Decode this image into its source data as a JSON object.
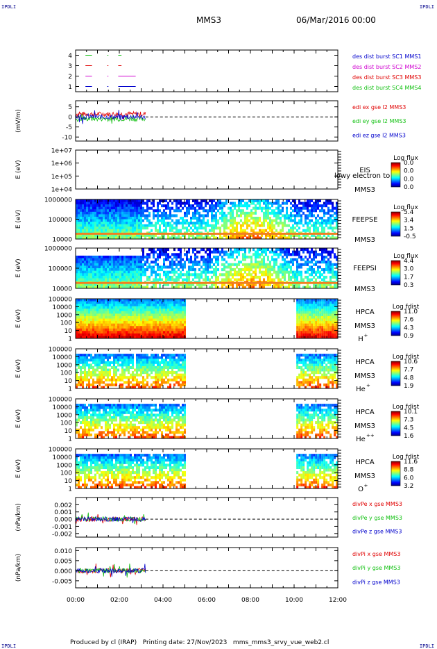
{
  "corner_labels": {
    "top_left": "IPDLI",
    "top_right": "IPDLI",
    "bottom_left": "IPDLI",
    "bottom_right": "IPDLI"
  },
  "header": {
    "spacecraft": "MMS3",
    "date": "06/Mar/2016 00:00"
  },
  "footer": {
    "text": "Produced by cl (IRAP)   Printing date: 27/Nov/2023   mms_mms3_srvy_vue_web2.cl"
  },
  "time_axis": {
    "ticks": [
      "00:00",
      "02:00",
      "04:00",
      "06:00",
      "08:00",
      "10:00",
      "12:00"
    ],
    "range_hours": [
      0,
      12
    ]
  },
  "colors": {
    "red": "#e00000",
    "green": "#10c010",
    "blue": "#0000cc",
    "magenta": "#d000d0"
  },
  "chart_data": [
    {
      "type": "line",
      "id": "des-dist",
      "yticks": [
        "1",
        "2",
        "3",
        "4"
      ],
      "ylim": [
        0.5,
        4.5
      ],
      "legend": [
        {
          "text": "des dist burst SC1 MMS1",
          "color": "#0000cc"
        },
        {
          "text": "des dist burst SC2 MMS2",
          "color": "#d000d0"
        },
        {
          "text": "des dist burst SC3 MMS3",
          "color": "#e00000"
        },
        {
          "text": "des dist burst SC4 MMS4",
          "color": "#10c010"
        }
      ],
      "series": [
        {
          "level": 4,
          "color": "#10c010",
          "segments": [
            [
              0.45,
              0.75
            ],
            [
              1.45,
              1.5
            ],
            [
              1.95,
              2.1
            ]
          ]
        },
        {
          "level": 3,
          "color": "#e00000",
          "segments": [
            [
              0.45,
              0.75
            ],
            [
              1.45,
              1.5
            ],
            [
              1.95,
              2.1
            ]
          ]
        },
        {
          "level": 2,
          "color": "#d000d0",
          "segments": [
            [
              0.45,
              0.75
            ],
            [
              1.45,
              1.5
            ],
            [
              1.95,
              2.75
            ]
          ]
        },
        {
          "level": 1,
          "color": "#0000cc",
          "segments": [
            [
              0.45,
              0.75
            ],
            [
              1.45,
              1.5
            ],
            [
              1.95,
              2.75
            ]
          ]
        }
      ]
    },
    {
      "type": "line",
      "id": "edi",
      "ylabel": "(mV/m)",
      "yticks": [
        "5",
        "0",
        "-5",
        "-10"
      ],
      "ytick_values": [
        5,
        0,
        -5,
        -10
      ],
      "ylim": [
        -12,
        8
      ],
      "legend": [
        {
          "text": "edi ex gse l2 MMS3",
          "color": "#e00000"
        },
        {
          "text": "edi ey gse l2 MMS3",
          "color": "#10c010"
        },
        {
          "text": "edi ez gse l2 MMS3",
          "color": "#0000cc"
        }
      ],
      "data_end_hours": 3.2
    },
    {
      "type": "heatmap",
      "id": "eis",
      "ylabel": "E (eV)",
      "yticks": [
        "1e+07",
        "1e+06",
        "1e+05",
        "1e+04"
      ],
      "labels": [
        "EIS",
        "MMS3"
      ],
      "overlay_text": "lowy electron to",
      "cbar_title": "Log flux",
      "cbar_ticks": [
        "0.0",
        "0.0",
        "0.0",
        "0.0"
      ],
      "data_segments": []
    },
    {
      "type": "heatmap",
      "id": "feepse",
      "ylabel": "E (eV)",
      "yticks": [
        "1000000",
        "100000",
        "10000"
      ],
      "labels": [
        "FEEPSE",
        "MMS3"
      ],
      "cbar_title": "Log flux",
      "cbar_ticks": [
        "5.4",
        "3.4",
        "1.5",
        "-0.5"
      ],
      "data_segments": [
        [
          0,
          12
        ]
      ]
    },
    {
      "type": "heatmap",
      "id": "feepsi",
      "ylabel": "E (eV)",
      "yticks": [
        "1000000",
        "100000",
        "10000"
      ],
      "labels": [
        "FEEPSI",
        "MMS3"
      ],
      "cbar_title": "Log flux",
      "cbar_ticks": [
        "4.4",
        "3.0",
        "1.7",
        "0.3"
      ],
      "data_segments": [
        [
          0,
          12
        ]
      ]
    },
    {
      "type": "heatmap",
      "id": "hpca-h",
      "ylabel": "E (eV)",
      "yticks": [
        "100000",
        "10000",
        "1000",
        "100",
        "10",
        "1"
      ],
      "labels": [
        "HPCA",
        "MMS3"
      ],
      "species": "H",
      "species_sup": "+",
      "cbar_title": "Log fdist",
      "cbar_ticks": [
        "11.0",
        "7.6",
        "4.3",
        "0.9"
      ],
      "data_segments": [
        [
          0,
          5.05
        ],
        [
          10.1,
          12
        ]
      ]
    },
    {
      "type": "heatmap",
      "id": "hpca-he",
      "ylabel": "E (eV)",
      "yticks": [
        "100000",
        "10000",
        "1000",
        "100",
        "10",
        "1"
      ],
      "labels": [
        "HPCA",
        "MMS3"
      ],
      "species": "He",
      "species_sup": "+",
      "cbar_title": "Log fdist",
      "cbar_ticks": [
        "10.6",
        "7.7",
        "4.8",
        "1.9"
      ],
      "data_segments": [
        [
          0,
          5.05
        ],
        [
          10.1,
          12
        ]
      ]
    },
    {
      "type": "heatmap",
      "id": "hpca-hepp",
      "ylabel": "E (eV)",
      "yticks": [
        "100000",
        "10000",
        "1000",
        "100",
        "10",
        "1"
      ],
      "labels": [
        "HPCA",
        "MMS3"
      ],
      "species": "He",
      "species_sup": "++",
      "cbar_title": "Log fdist",
      "cbar_ticks": [
        "10.1",
        "7.3",
        "4.5",
        "1.6"
      ],
      "data_segments": [
        [
          0,
          5.05
        ],
        [
          10.1,
          12
        ]
      ]
    },
    {
      "type": "heatmap",
      "id": "hpca-o",
      "ylabel": "E (eV)",
      "yticks": [
        "100000",
        "10000",
        "1000",
        "100",
        "10",
        "1"
      ],
      "labels": [
        "HPCA",
        "MMS3"
      ],
      "species": "O",
      "species_sup": "+",
      "cbar_title": "Log fdist",
      "cbar_ticks": [
        "11.6",
        "8.8",
        "6.0",
        "3.2"
      ],
      "data_segments": [
        [
          0,
          5.05
        ],
        [
          10.1,
          12
        ]
      ]
    },
    {
      "type": "line",
      "id": "divpe",
      "ylabel": "(nPa/km)",
      "yticks": [
        "0.002",
        "0.001",
        "0.000",
        "-0.001",
        "-0.002"
      ],
      "ytick_values": [
        0.002,
        0.001,
        0,
        -0.001,
        -0.002
      ],
      "ylim": [
        -0.0025,
        0.003
      ],
      "legend": [
        {
          "text": "divPe x gse MMS3",
          "color": "#e00000"
        },
        {
          "text": "divPe y gse MMS3",
          "color": "#10c010"
        },
        {
          "text": "divPe z gse MMS3",
          "color": "#0000cc"
        }
      ],
      "data_end_hours": 3.2
    },
    {
      "type": "line",
      "id": "divpi",
      "ylabel": "(nPa/km)",
      "yticks": [
        "0.010",
        "0.005",
        "0.000",
        "-0.005"
      ],
      "ytick_values": [
        0.01,
        0.005,
        0,
        -0.005
      ],
      "ylim": [
        -0.0085,
        0.0115
      ],
      "legend": [
        {
          "text": "divPi x gse MMS3",
          "color": "#e00000"
        },
        {
          "text": "divPi y gse MMS3",
          "color": "#10c010"
        },
        {
          "text": "divPi z gse MMS3",
          "color": "#0000cc"
        }
      ],
      "data_end_hours": 3.2
    }
  ]
}
